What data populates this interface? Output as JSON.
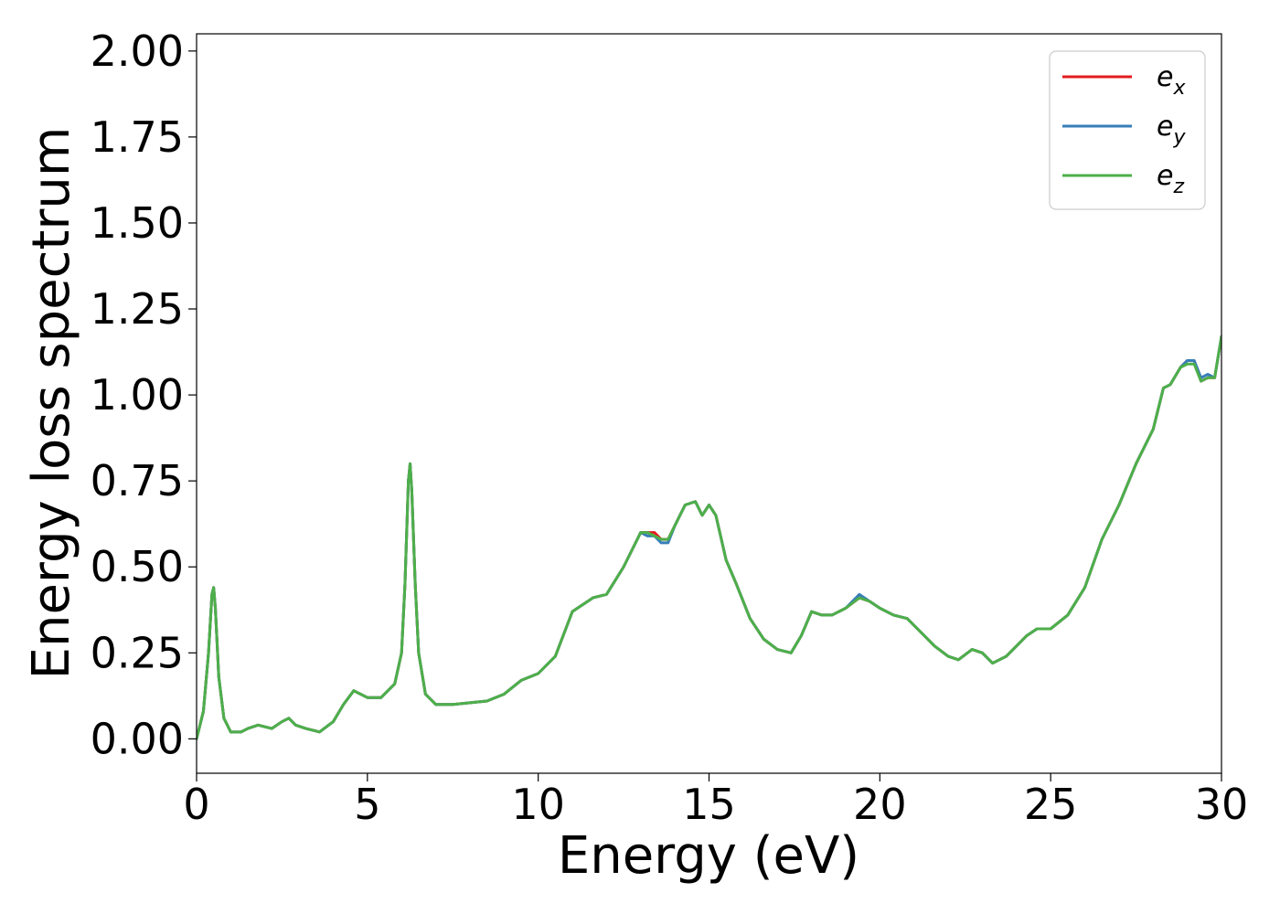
{
  "chart_data": {
    "type": "line",
    "title": "",
    "xlabel": "Energy (eV)",
    "ylabel": "Energy loss spectrum",
    "xlim": [
      0,
      30
    ],
    "ylim": [
      -0.1,
      2.05
    ],
    "xticks": [
      0,
      5,
      10,
      15,
      20,
      25,
      30
    ],
    "xtick_labels": [
      "0",
      "5",
      "10",
      "15",
      "20",
      "25",
      "30"
    ],
    "yticks": [
      0.0,
      0.25,
      0.5,
      0.75,
      1.0,
      1.25,
      1.5,
      1.75,
      2.0
    ],
    "ytick_labels": [
      "0.00",
      "0.25",
      "0.50",
      "0.75",
      "1.00",
      "1.25",
      "1.50",
      "1.75",
      "2.00"
    ],
    "grid": false,
    "legend_position": "top-right",
    "x": [
      0,
      0.2,
      0.35,
      0.45,
      0.5,
      0.55,
      0.65,
      0.8,
      1.0,
      1.3,
      1.5,
      1.8,
      2.2,
      2.5,
      2.7,
      2.9,
      3.2,
      3.6,
      4.0,
      4.3,
      4.6,
      5.0,
      5.4,
      5.8,
      6.0,
      6.1,
      6.2,
      6.25,
      6.3,
      6.4,
      6.5,
      6.7,
      7.0,
      7.5,
      8.0,
      8.5,
      9.0,
      9.5,
      10.0,
      10.5,
      11.0,
      11.3,
      11.6,
      12.0,
      12.5,
      13.0,
      13.2,
      13.4,
      13.6,
      13.8,
      14.0,
      14.3,
      14.6,
      14.8,
      15.0,
      15.2,
      15.5,
      15.8,
      16.2,
      16.6,
      17.0,
      17.4,
      17.7,
      18.0,
      18.3,
      18.6,
      19.0,
      19.4,
      19.7,
      20.0,
      20.4,
      20.8,
      21.2,
      21.6,
      22.0,
      22.3,
      22.7,
      23.0,
      23.3,
      23.7,
      24.0,
      24.3,
      24.6,
      25.0,
      25.5,
      26.0,
      26.5,
      27.0,
      27.5,
      28.0,
      28.3,
      28.5,
      28.8,
      29.0,
      29.2,
      29.4,
      29.6,
      29.8,
      30.0
    ],
    "series": [
      {
        "name": "e_x",
        "color": "#e41a1c",
        "values": [
          0.0,
          0.08,
          0.25,
          0.42,
          0.44,
          0.38,
          0.18,
          0.06,
          0.02,
          0.02,
          0.03,
          0.04,
          0.03,
          0.05,
          0.06,
          0.04,
          0.03,
          0.02,
          0.05,
          0.1,
          0.14,
          0.12,
          0.12,
          0.16,
          0.25,
          0.45,
          0.75,
          0.8,
          0.72,
          0.45,
          0.25,
          0.13,
          0.1,
          0.1,
          0.105,
          0.11,
          0.13,
          0.17,
          0.19,
          0.24,
          0.37,
          0.39,
          0.41,
          0.42,
          0.5,
          0.6,
          0.6,
          0.6,
          0.58,
          0.58,
          0.62,
          0.68,
          0.69,
          0.65,
          0.68,
          0.65,
          0.52,
          0.45,
          0.35,
          0.29,
          0.26,
          0.25,
          0.3,
          0.37,
          0.36,
          0.36,
          0.38,
          0.41,
          0.4,
          0.38,
          0.36,
          0.35,
          0.31,
          0.27,
          0.24,
          0.23,
          0.26,
          0.25,
          0.22,
          0.24,
          0.27,
          0.3,
          0.32,
          0.32,
          0.36,
          0.44,
          0.58,
          0.68,
          0.8,
          0.9,
          1.02,
          1.03,
          1.08,
          1.1,
          1.1,
          1.04,
          1.05,
          1.05,
          1.17
        ]
      },
      {
        "name": "e_y",
        "color": "#377eb8",
        "values": [
          0.0,
          0.08,
          0.25,
          0.42,
          0.44,
          0.38,
          0.18,
          0.06,
          0.02,
          0.02,
          0.03,
          0.04,
          0.03,
          0.05,
          0.06,
          0.04,
          0.03,
          0.02,
          0.05,
          0.1,
          0.14,
          0.12,
          0.12,
          0.16,
          0.25,
          0.45,
          0.75,
          0.8,
          0.72,
          0.45,
          0.25,
          0.13,
          0.1,
          0.1,
          0.105,
          0.11,
          0.13,
          0.17,
          0.19,
          0.24,
          0.37,
          0.39,
          0.41,
          0.42,
          0.5,
          0.6,
          0.59,
          0.59,
          0.57,
          0.57,
          0.62,
          0.68,
          0.69,
          0.65,
          0.68,
          0.65,
          0.52,
          0.45,
          0.35,
          0.29,
          0.26,
          0.25,
          0.3,
          0.37,
          0.36,
          0.36,
          0.38,
          0.42,
          0.4,
          0.38,
          0.36,
          0.35,
          0.31,
          0.27,
          0.24,
          0.23,
          0.26,
          0.25,
          0.22,
          0.24,
          0.27,
          0.3,
          0.32,
          0.32,
          0.36,
          0.44,
          0.58,
          0.68,
          0.8,
          0.9,
          1.02,
          1.03,
          1.08,
          1.1,
          1.1,
          1.05,
          1.06,
          1.05,
          1.17
        ]
      },
      {
        "name": "e_z",
        "color": "#4daf4a",
        "values": [
          0.0,
          0.08,
          0.25,
          0.42,
          0.44,
          0.38,
          0.18,
          0.06,
          0.02,
          0.02,
          0.03,
          0.04,
          0.03,
          0.05,
          0.06,
          0.04,
          0.03,
          0.02,
          0.05,
          0.1,
          0.14,
          0.12,
          0.12,
          0.16,
          0.25,
          0.45,
          0.75,
          0.8,
          0.72,
          0.45,
          0.25,
          0.13,
          0.1,
          0.1,
          0.105,
          0.11,
          0.13,
          0.17,
          0.19,
          0.24,
          0.37,
          0.39,
          0.41,
          0.42,
          0.5,
          0.6,
          0.6,
          0.59,
          0.58,
          0.58,
          0.62,
          0.68,
          0.69,
          0.65,
          0.68,
          0.65,
          0.52,
          0.45,
          0.35,
          0.29,
          0.26,
          0.25,
          0.3,
          0.37,
          0.36,
          0.36,
          0.38,
          0.41,
          0.4,
          0.38,
          0.36,
          0.35,
          0.31,
          0.27,
          0.24,
          0.23,
          0.26,
          0.25,
          0.22,
          0.24,
          0.27,
          0.3,
          0.32,
          0.32,
          0.36,
          0.44,
          0.58,
          0.68,
          0.8,
          0.9,
          1.02,
          1.03,
          1.08,
          1.09,
          1.09,
          1.04,
          1.05,
          1.05,
          1.17
        ]
      }
    ],
    "legend": {
      "entries": [
        {
          "base": "e",
          "sub": "x",
          "color": "#e41a1c"
        },
        {
          "base": "e",
          "sub": "y",
          "color": "#377eb8"
        },
        {
          "base": "e",
          "sub": "z",
          "color": "#4daf4a"
        }
      ]
    }
  }
}
